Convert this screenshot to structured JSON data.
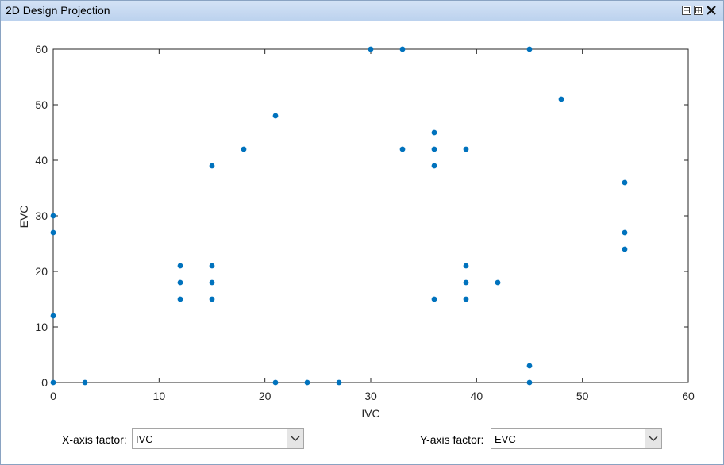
{
  "window": {
    "title": "2D Design Projection",
    "controls": [
      {
        "name": "undock-icon"
      },
      {
        "name": "dock-icon"
      },
      {
        "name": "close-icon"
      }
    ]
  },
  "chart_data": {
    "type": "scatter",
    "title": "",
    "xlabel": "IVC",
    "ylabel": "EVC",
    "xlim": [
      0,
      60
    ],
    "ylim": [
      0,
      60
    ],
    "xticks": [
      0,
      10,
      20,
      30,
      40,
      50,
      60
    ],
    "yticks": [
      0,
      10,
      20,
      30,
      40,
      50,
      60
    ],
    "grid": false,
    "marker_color": "#0072bd",
    "series": [
      {
        "points": [
          [
            0,
            0
          ],
          [
            0,
            12
          ],
          [
            0,
            27
          ],
          [
            0,
            30
          ],
          [
            3,
            0
          ],
          [
            12,
            15
          ],
          [
            12,
            18
          ],
          [
            12,
            21
          ],
          [
            15,
            15
          ],
          [
            15,
            18
          ],
          [
            15,
            21
          ],
          [
            15,
            39
          ],
          [
            18,
            42
          ],
          [
            21,
            48
          ],
          [
            21,
            0
          ],
          [
            24,
            0
          ],
          [
            27,
            0
          ],
          [
            30,
            60
          ],
          [
            33,
            60
          ],
          [
            33,
            42
          ],
          [
            36,
            15
          ],
          [
            36,
            39
          ],
          [
            36,
            42
          ],
          [
            36,
            45
          ],
          [
            39,
            15
          ],
          [
            39,
            18
          ],
          [
            39,
            21
          ],
          [
            39,
            42
          ],
          [
            42,
            18
          ],
          [
            45,
            60
          ],
          [
            45,
            3
          ],
          [
            45,
            0
          ],
          [
            48,
            51
          ],
          [
            54,
            24
          ],
          [
            54,
            27
          ],
          [
            54,
            36
          ]
        ]
      }
    ]
  },
  "controls": {
    "x_factor_label": "X-axis factor:",
    "x_factor_value": "IVC",
    "y_factor_label": "Y-axis factor:",
    "y_factor_value": "EVC"
  }
}
